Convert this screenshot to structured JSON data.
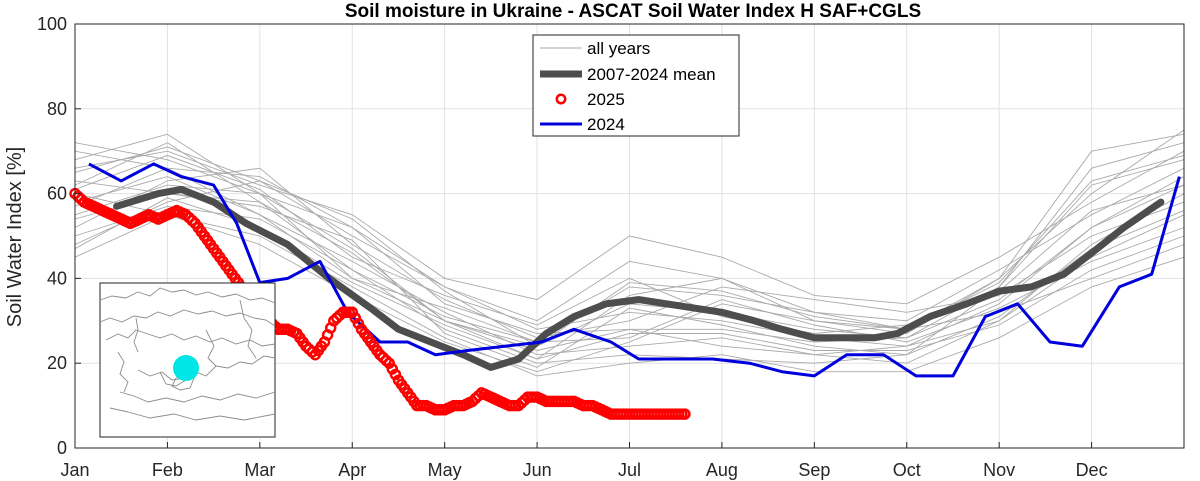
{
  "chart_data": {
    "type": "line",
    "title": "Soil moisture in Ukraine - ASCAT Soil Water Index H SAF+CGLS",
    "xlabel": "",
    "ylabel": "Soil Water Index [%]",
    "xlim": [
      0,
      12
    ],
    "ylim": [
      0,
      100
    ],
    "x_tick_labels": [
      "Jan",
      "Feb",
      "Mar",
      "Apr",
      "May",
      "Jun",
      "Jul",
      "Aug",
      "Sep",
      "Oct",
      "Nov",
      "Dec"
    ],
    "y_ticks": [
      0,
      20,
      40,
      60,
      80,
      100
    ],
    "grid": true,
    "legend_position": "top-center",
    "legend": [
      {
        "label": "all years",
        "style": "thin-line",
        "color": "#a8a8a8"
      },
      {
        "label": "2007-2024 mean",
        "style": "thick-line",
        "color": "#4d4d4d"
      },
      {
        "label": "2025",
        "style": "circle-markers",
        "color": "#ff0000"
      },
      {
        "label": "2024",
        "style": "line",
        "color": "#0000dd"
      }
    ],
    "series": [
      {
        "name": "2007-2024 mean",
        "color": "#4d4d4d",
        "x": [
          0.45,
          0.9,
          1.15,
          1.5,
          1.85,
          2.3,
          2.75,
          3.2,
          3.5,
          3.85,
          4.2,
          4.5,
          4.8,
          5.1,
          5.4,
          5.75,
          6.1,
          6.4,
          6.7,
          7.0,
          7.35,
          7.65,
          8.0,
          8.3,
          8.65,
          8.9,
          9.25,
          9.65,
          10.0,
          10.35,
          10.7,
          11.0,
          11.35,
          11.75
        ],
        "y": [
          57,
          60,
          61,
          58,
          53,
          48,
          40,
          33,
          28,
          25,
          22,
          19,
          21,
          27,
          31,
          34,
          35,
          34,
          33,
          32,
          30,
          28,
          26,
          26,
          26,
          27,
          31,
          34,
          37,
          38,
          41,
          46,
          52,
          58
        ]
      },
      {
        "name": "2025",
        "color": "#ff0000",
        "x": [
          0.0,
          0.1,
          0.2,
          0.3,
          0.4,
          0.5,
          0.6,
          0.7,
          0.8,
          0.9,
          1.0,
          1.1,
          1.2,
          1.3,
          1.4,
          1.5,
          1.6,
          1.7,
          1.8,
          1.9,
          2.0,
          2.1,
          2.2,
          2.3,
          2.4,
          2.5,
          2.6,
          2.7,
          2.8,
          2.9,
          3.0,
          3.1,
          3.2,
          3.3,
          3.4,
          3.5,
          3.6,
          3.7,
          3.8,
          3.9,
          4.0,
          4.1,
          4.2,
          4.3,
          4.4,
          4.5,
          4.6,
          4.7,
          4.8,
          4.9,
          5.0,
          5.1,
          5.2,
          5.3,
          5.4,
          5.5,
          5.6,
          5.7,
          5.8,
          5.9,
          6.0,
          6.1,
          6.2,
          6.3,
          6.4,
          6.5,
          6.6
        ],
        "y": [
          60,
          58,
          57,
          56,
          55,
          54,
          53,
          54,
          55,
          54,
          55,
          56,
          55,
          53,
          50,
          47,
          44,
          41,
          38,
          35,
          32,
          30,
          28,
          28,
          27,
          24,
          22,
          25,
          30,
          32,
          32,
          28,
          25,
          22,
          20,
          16,
          13,
          10,
          10,
          9,
          9,
          10,
          10,
          11,
          13,
          12,
          11,
          10,
          10,
          12,
          12,
          11,
          11,
          11,
          11,
          10,
          10,
          9,
          8,
          8,
          8,
          8,
          8,
          8,
          8,
          8,
          8
        ]
      },
      {
        "name": "2024",
        "color": "#0000dd",
        "x": [
          0.15,
          0.5,
          0.85,
          1.15,
          1.5,
          1.75,
          2.0,
          2.3,
          2.65,
          2.95,
          3.3,
          3.6,
          3.9,
          4.25,
          4.65,
          5.05,
          5.4,
          5.8,
          6.1,
          6.5,
          6.9,
          7.3,
          7.65,
          8.0,
          8.35,
          8.75,
          9.1,
          9.5,
          9.85,
          10.2,
          10.55,
          10.9,
          11.3,
          11.65,
          11.95
        ],
        "y": [
          67,
          63,
          67,
          64,
          62,
          53,
          39,
          40,
          44,
          32,
          25,
          25,
          22,
          23,
          24,
          25,
          28,
          25,
          21,
          21,
          21,
          20,
          18,
          17,
          22,
          22,
          17,
          17,
          31,
          34,
          25,
          24,
          38,
          41,
          64
        ]
      }
    ],
    "all_years": [
      {
        "x": [
          0,
          1,
          2,
          3,
          4,
          5,
          6,
          7,
          8,
          9,
          10,
          11,
          12
        ],
        "y": [
          55,
          62,
          60,
          47,
          30,
          23,
          28,
          28,
          25,
          26,
          35,
          52,
          62
        ]
      },
      {
        "x": [
          0,
          1,
          2,
          3,
          4,
          5,
          6,
          7,
          8,
          9,
          10,
          11,
          12
        ],
        "y": [
          70,
          66,
          55,
          40,
          33,
          25,
          38,
          36,
          32,
          28,
          40,
          60,
          75
        ]
      },
      {
        "x": [
          0,
          1,
          2,
          3,
          4,
          5,
          6,
          7,
          8,
          9,
          10,
          11,
          12
        ],
        "y": [
          48,
          58,
          63,
          50,
          38,
          28,
          32,
          30,
          26,
          24,
          30,
          45,
          55
        ]
      },
      {
        "x": [
          0,
          1,
          2,
          3,
          4,
          5,
          6,
          7,
          8,
          9,
          10,
          11,
          12
        ],
        "y": [
          62,
          72,
          58,
          42,
          28,
          20,
          22,
          21,
          20,
          22,
          38,
          66,
          72
        ]
      },
      {
        "x": [
          0,
          1,
          2,
          3,
          4,
          5,
          6,
          7,
          8,
          9,
          10,
          11,
          12
        ],
        "y": [
          60,
          55,
          48,
          36,
          25,
          18,
          25,
          34,
          30,
          28,
          32,
          40,
          48
        ]
      },
      {
        "x": [
          0,
          1,
          2,
          3,
          4,
          5,
          6,
          7,
          8,
          9,
          10,
          11,
          12
        ],
        "y": [
          72,
          68,
          60,
          52,
          38,
          30,
          44,
          40,
          32,
          30,
          42,
          55,
          66
        ]
      },
      {
        "x": [
          0,
          1,
          2,
          3,
          4,
          5,
          6,
          7,
          8,
          9,
          10,
          11,
          12
        ],
        "y": [
          52,
          63,
          66,
          48,
          35,
          26,
          30,
          38,
          35,
          32,
          36,
          50,
          58
        ]
      },
      {
        "x": [
          0,
          1,
          2,
          3,
          4,
          5,
          6,
          7,
          8,
          9,
          10,
          11,
          12
        ],
        "y": [
          58,
          64,
          55,
          44,
          32,
          22,
          24,
          26,
          22,
          20,
          30,
          48,
          60
        ]
      },
      {
        "x": [
          0,
          1,
          2,
          3,
          4,
          5,
          6,
          7,
          8,
          9,
          10,
          11,
          12
        ],
        "y": [
          66,
          70,
          62,
          55,
          40,
          35,
          50,
          45,
          36,
          34,
          45,
          58,
          70
        ]
      },
      {
        "x": [
          0,
          1,
          2,
          3,
          4,
          5,
          6,
          7,
          8,
          9,
          10,
          11,
          12
        ],
        "y": [
          45,
          55,
          50,
          38,
          26,
          17,
          20,
          22,
          18,
          18,
          26,
          38,
          45
        ]
      },
      {
        "x": [
          0,
          1,
          2,
          3,
          4,
          5,
          6,
          7,
          8,
          9,
          10,
          11,
          12
        ],
        "y": [
          63,
          60,
          58,
          46,
          30,
          24,
          34,
          32,
          28,
          26,
          38,
          62,
          68
        ]
      },
      {
        "x": [
          0,
          1,
          2,
          3,
          4,
          5,
          6,
          7,
          8,
          9,
          10,
          11,
          12
        ],
        "y": [
          57,
          66,
          64,
          52,
          34,
          27,
          28,
          24,
          22,
          24,
          34,
          52,
          64
        ]
      },
      {
        "x": [
          0,
          1,
          2,
          3,
          4,
          5,
          6,
          7,
          8,
          9,
          10,
          11,
          12
        ],
        "y": [
          68,
          74,
          60,
          40,
          30,
          21,
          36,
          40,
          30,
          27,
          40,
          70,
          74
        ]
      },
      {
        "x": [
          0,
          1,
          2,
          3,
          4,
          5,
          6,
          7,
          8,
          9,
          10,
          11,
          12
        ],
        "y": [
          50,
          57,
          54,
          42,
          31,
          25,
          26,
          35,
          29,
          25,
          33,
          44,
          52
        ]
      },
      {
        "x": [
          0,
          1,
          2,
          3,
          4,
          5,
          6,
          7,
          8,
          9,
          10,
          11,
          12
        ],
        "y": [
          61,
          69,
          61,
          45,
          36,
          29,
          40,
          31,
          27,
          29,
          37,
          56,
          62
        ]
      },
      {
        "x": [
          0,
          1,
          2,
          3,
          4,
          5,
          6,
          7,
          8,
          9,
          10,
          11,
          12
        ],
        "y": [
          54,
          60,
          57,
          49,
          27,
          19,
          33,
          29,
          24,
          22,
          31,
          47,
          56
        ]
      },
      {
        "x": [
          0,
          1,
          2,
          3,
          4,
          5,
          6,
          7,
          8,
          9,
          10,
          11,
          12
        ],
        "y": [
          65,
          71,
          63,
          54,
          37,
          24,
          39,
          37,
          31,
          28,
          39,
          63,
          69
        ]
      },
      {
        "x": [
          0,
          1,
          2,
          3,
          4,
          5,
          6,
          7,
          8,
          9,
          10,
          11,
          12
        ],
        "y": [
          47,
          59,
          52,
          39,
          29,
          21,
          27,
          27,
          23,
          23,
          29,
          42,
          50
        ]
      }
    ],
    "inset_map": {
      "subject": "map of Ukraine and Black Sea region",
      "highlight": "cyan marker over southern Ukraine",
      "highlight_color": "#00e5e5"
    }
  }
}
